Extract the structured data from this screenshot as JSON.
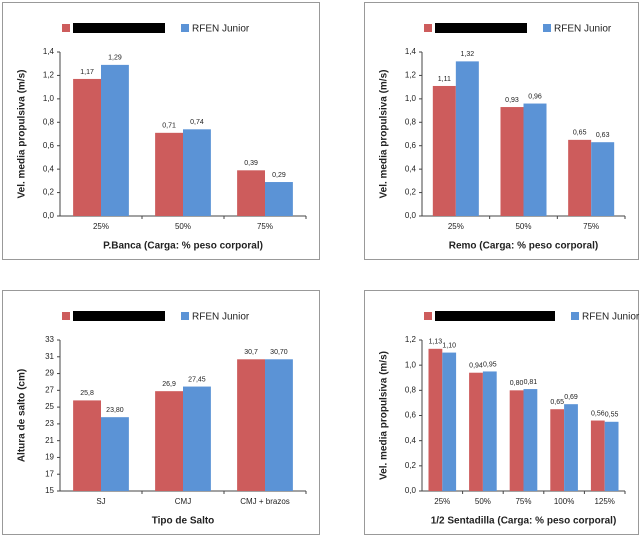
{
  "chart_data": [
    {
      "type": "bar",
      "xlabel": "P.Banca (Carga: % peso corporal)",
      "ylabel": "Vel. media propulsiva (m/s)",
      "categories": [
        "25%",
        "50%",
        "75%"
      ],
      "series": [
        {
          "color": "#cd5c5c",
          "values": [
            1.17,
            0.71,
            0.39
          ],
          "value_labels": [
            "1,17",
            "0,71",
            "0,39"
          ]
        },
        {
          "name": "RFEN Junior",
          "color": "#5b93d6",
          "values": [
            1.29,
            0.74,
            0.29
          ],
          "value_labels": [
            "1,29",
            "0,74",
            "0,29"
          ]
        }
      ],
      "ylim": [
        0,
        1.4
      ],
      "yticks": [
        {
          "value": 0,
          "label": "0,0"
        },
        {
          "value": 0.2,
          "label": "0,2"
        },
        {
          "value": 0.4,
          "label": "0,4"
        },
        {
          "value": 0.6,
          "label": "0,6"
        },
        {
          "value": 0.8,
          "label": "0,8"
        },
        {
          "value": 1.0,
          "label": "1,0"
        },
        {
          "value": 1.2,
          "label": "1,2"
        },
        {
          "value": 1.4,
          "label": "1,4"
        }
      ],
      "grid": false
    },
    {
      "type": "bar",
      "xlabel": "Remo (Carga: % peso corporal)",
      "ylabel": "Vel. media propulsiva (m/s)",
      "categories": [
        "25%",
        "50%",
        "75%"
      ],
      "series": [
        {
          "color": "#cd5c5c",
          "values": [
            1.11,
            0.93,
            0.65
          ],
          "value_labels": [
            "1,11",
            "0,93",
            "0,65"
          ]
        },
        {
          "name": "RFEN Junior",
          "color": "#5b93d6",
          "values": [
            1.32,
            0.96,
            0.63
          ],
          "value_labels": [
            "1,32",
            "0,96",
            "0,63"
          ]
        }
      ],
      "ylim": [
        0,
        1.4
      ],
      "yticks": [
        {
          "value": 0,
          "label": "0,0"
        },
        {
          "value": 0.2,
          "label": "0,2"
        },
        {
          "value": 0.4,
          "label": "0,4"
        },
        {
          "value": 0.6,
          "label": "0,6"
        },
        {
          "value": 0.8,
          "label": "0,8"
        },
        {
          "value": 1.0,
          "label": "1,0"
        },
        {
          "value": 1.2,
          "label": "1,2"
        },
        {
          "value": 1.4,
          "label": "1,4"
        }
      ],
      "grid": false
    },
    {
      "type": "bar",
      "xlabel": "Tipo de Salto",
      "ylabel": "Altura de salto (cm)",
      "categories": [
        "SJ",
        "CMJ",
        "CMJ + brazos"
      ],
      "series": [
        {
          "color": "#cd5c5c",
          "values": [
            25.8,
            26.9,
            30.7
          ],
          "value_labels": [
            "25,8",
            "26,9",
            "30,7"
          ]
        },
        {
          "name": "RFEN Junior",
          "color": "#5b93d6",
          "values": [
            23.8,
            27.45,
            30.7
          ],
          "value_labels": [
            "23,80",
            "27,45",
            "30,70"
          ]
        }
      ],
      "ylim": [
        15,
        33
      ],
      "yticks": [
        15,
        17,
        19,
        21,
        23,
        25,
        27,
        29,
        31,
        33
      ],
      "grid": false
    },
    {
      "type": "bar",
      "xlabel": "1/2 Sentadilla (Carga: % peso corporal)",
      "ylabel": "Vel. media propulsiva (m/s)",
      "categories": [
        "25%",
        "50%",
        "75%",
        "100%",
        "125%"
      ],
      "series": [
        {
          "color": "#cd5c5c",
          "values": [
            1.13,
            0.94,
            0.8,
            0.65,
            0.56
          ],
          "value_labels": [
            "1,13",
            "0,94",
            "0,80",
            "0,65",
            "0,56"
          ]
        },
        {
          "name": "RFEN Junior",
          "color": "#5b93d6",
          "values": [
            1.1,
            0.95,
            0.81,
            0.69,
            0.55
          ],
          "value_labels": [
            "1,10",
            "0,95",
            "0,81",
            "0,69",
            "0,55"
          ]
        }
      ],
      "ylim": [
        0,
        1.2
      ],
      "yticks": [
        {
          "value": 0,
          "label": "0,0"
        },
        {
          "value": 0.2,
          "label": "0,2"
        },
        {
          "value": 0.4,
          "label": "0,4"
        },
        {
          "value": 0.6,
          "label": "0,6"
        },
        {
          "value": 0.8,
          "label": "0,8"
        },
        {
          "value": 1.0,
          "label": "1,0"
        },
        {
          "value": 1.2,
          "label": "1,2"
        }
      ],
      "grid": false
    }
  ]
}
